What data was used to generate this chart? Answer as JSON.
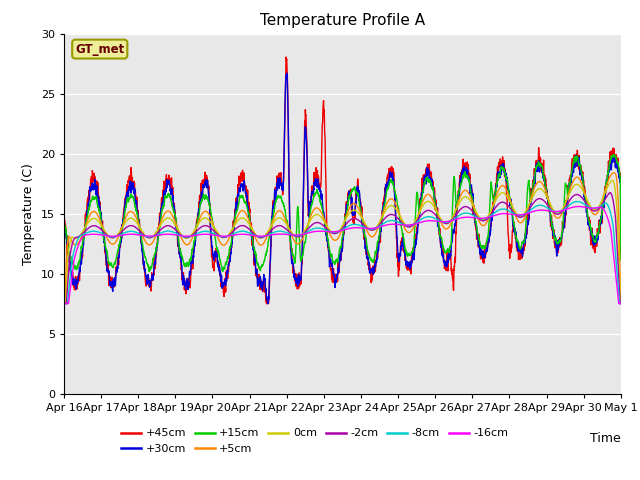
{
  "title": "Temperature Profile A",
  "xlabel": "Time",
  "ylabel": "Temperature (C)",
  "ylim": [
    0,
    30
  ],
  "yticks": [
    0,
    5,
    10,
    15,
    20,
    25,
    30
  ],
  "xtick_labels": [
    "Apr 16",
    "Apr 17",
    "Apr 18",
    "Apr 19",
    "Apr 20",
    "Apr 21",
    "Apr 22",
    "Apr 23",
    "Apr 24",
    "Apr 25",
    "Apr 26",
    "Apr 27",
    "Apr 28",
    "Apr 29",
    "Apr 30",
    "May 1"
  ],
  "legend_label": "GT_met",
  "legend_box_facecolor": "#eeee99",
  "legend_box_edgecolor": "#999900",
  "legend_text_color": "#660000",
  "series": [
    {
      "label": "+45cm",
      "color": "#ee0000",
      "linewidth": 1.0
    },
    {
      "label": "+30cm",
      "color": "#0000dd",
      "linewidth": 1.0
    },
    {
      "label": "+15cm",
      "color": "#00cc00",
      "linewidth": 1.0
    },
    {
      "label": "+5cm",
      "color": "#ff8800",
      "linewidth": 1.0
    },
    {
      "label": "0cm",
      "color": "#cccc00",
      "linewidth": 1.0
    },
    {
      "label": "-2cm",
      "color": "#aa00aa",
      "linewidth": 1.0
    },
    {
      "label": "-8cm",
      "color": "#00cccc",
      "linewidth": 1.0
    },
    {
      "label": "-16cm",
      "color": "#ff00ff",
      "linewidth": 1.0
    }
  ],
  "bg_color": "#e8e8e8",
  "fig_color": "#ffffff",
  "grid_color": "#ffffff",
  "title_fontsize": 11,
  "axis_fontsize": 9,
  "tick_fontsize": 8
}
